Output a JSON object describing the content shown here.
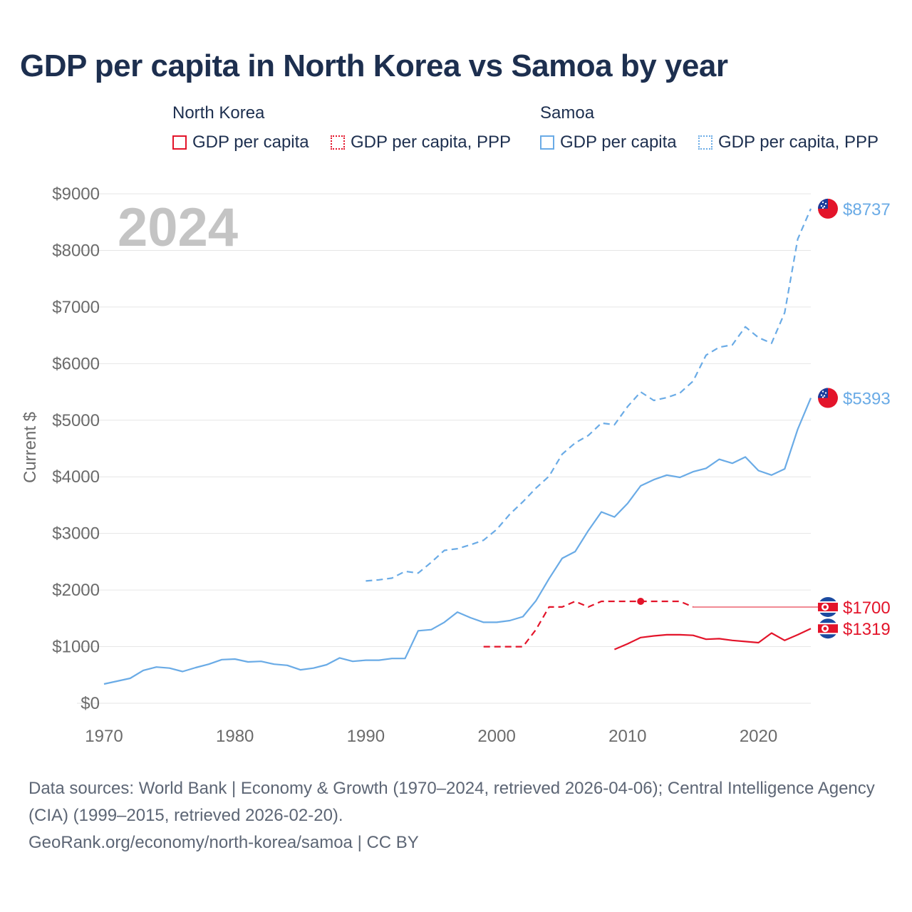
{
  "title": "GDP per capita in North Korea vs Samoa by year",
  "legend": {
    "groups": [
      {
        "name": "North Korea",
        "items": [
          "GDP per capita",
          "GDP per capita, PPP"
        ]
      },
      {
        "name": "Samoa",
        "items": [
          "GDP per capita",
          "GDP per capita, PPP"
        ]
      }
    ]
  },
  "colors": {
    "north_korea": "#e3142a",
    "samoa": "#6aabe6",
    "grid": "#e6e6e6",
    "axis_text": "#6b6b6b",
    "year_watermark": "#c4c4c4"
  },
  "footer": {
    "source_line": "Data sources: World Bank | Economy & Growth (1970–2024, retrieved 2026-04-06); Central Intelligence Agency (CIA) (1999–2015, retrieved 2026-02-20).",
    "credit_line": "GeoRank.org/economy/north-korea/samoa | CC BY"
  },
  "chart_data": {
    "type": "line",
    "year_label": "2024",
    "ylabel": "Current $",
    "xlim": [
      1970,
      2024
    ],
    "ylim": [
      0,
      9000
    ],
    "x_ticks": [
      1970,
      1980,
      1990,
      2000,
      2010,
      2020
    ],
    "y_ticks": [
      0,
      1000,
      2000,
      3000,
      4000,
      5000,
      6000,
      7000,
      8000,
      9000
    ],
    "y_tick_labels": [
      "$0",
      "$1000",
      "$2000",
      "$3000",
      "$4000",
      "$5000",
      "$6000",
      "$7000",
      "$8000",
      "$9000"
    ],
    "grid": true,
    "series": [
      {
        "name": "Samoa GDP per capita",
        "country": "samoa",
        "style": "solid",
        "end_label": "$5393",
        "x": [
          1970,
          1971,
          1972,
          1973,
          1974,
          1975,
          1976,
          1977,
          1978,
          1979,
          1980,
          1981,
          1982,
          1983,
          1984,
          1985,
          1986,
          1987,
          1988,
          1989,
          1990,
          1991,
          1992,
          1993,
          1994,
          1995,
          1996,
          1997,
          1998,
          1999,
          2000,
          2001,
          2002,
          2003,
          2004,
          2005,
          2006,
          2007,
          2008,
          2009,
          2010,
          2011,
          2012,
          2013,
          2014,
          2015,
          2016,
          2017,
          2018,
          2019,
          2020,
          2021,
          2022,
          2023,
          2024
        ],
        "values": [
          340,
          390,
          440,
          580,
          640,
          620,
          560,
          630,
          690,
          770,
          780,
          730,
          740,
          690,
          670,
          590,
          620,
          680,
          800,
          740,
          760,
          760,
          790,
          790,
          1280,
          1300,
          1430,
          1610,
          1510,
          1430,
          1430,
          1460,
          1530,
          1810,
          2200,
          2560,
          2680,
          3050,
          3380,
          3290,
          3530,
          3840,
          3950,
          4030,
          3990,
          4090,
          4150,
          4310,
          4240,
          4350,
          4110,
          4030,
          4140,
          4840,
          5393
        ]
      },
      {
        "name": "Samoa GDP per capita, PPP",
        "country": "samoa",
        "style": "dashed",
        "end_label": "$8737",
        "x": [
          1990,
          1991,
          1992,
          1993,
          1994,
          1995,
          1996,
          1997,
          1998,
          1999,
          2000,
          2001,
          2002,
          2003,
          2004,
          2005,
          2006,
          2007,
          2008,
          2009,
          2010,
          2011,
          2012,
          2013,
          2014,
          2015,
          2016,
          2017,
          2018,
          2019,
          2020,
          2021,
          2022,
          2023,
          2024
        ],
        "values": [
          2160,
          2180,
          2210,
          2330,
          2300,
          2490,
          2700,
          2730,
          2800,
          2880,
          3070,
          3340,
          3560,
          3800,
          4010,
          4400,
          4600,
          4730,
          4950,
          4920,
          5240,
          5500,
          5350,
          5400,
          5480,
          5690,
          6150,
          6290,
          6330,
          6650,
          6460,
          6360,
          6900,
          8200,
          8737
        ]
      },
      {
        "name": "North Korea GDP per capita",
        "country": "north_korea",
        "style": "solid",
        "end_label": "$1319",
        "x": [
          2009,
          2010,
          2011,
          2012,
          2013,
          2014,
          2015,
          2016,
          2017,
          2018,
          2019,
          2020,
          2021,
          2022,
          2023,
          2024
        ],
        "values": [
          950,
          1050,
          1160,
          1190,
          1210,
          1210,
          1200,
          1130,
          1140,
          1110,
          1090,
          1070,
          1240,
          1110,
          1210,
          1319
        ]
      },
      {
        "name": "North Korea GDP per capita, PPP",
        "country": "north_korea",
        "style": "dashed",
        "end_label": "$1700",
        "x": [
          1999,
          2000,
          2001,
          2002,
          2003,
          2004,
          2005,
          2006,
          2007,
          2008,
          2009,
          2010,
          2011,
          2012,
          2013,
          2014,
          2015
        ],
        "values": [
          1000,
          1000,
          1000,
          1000,
          1300,
          1700,
          1700,
          1800,
          1700,
          1800,
          1800,
          1800,
          1800,
          1800,
          1800,
          1800,
          1700
        ],
        "marker_year": 2011,
        "extend_to": 2024
      }
    ]
  }
}
